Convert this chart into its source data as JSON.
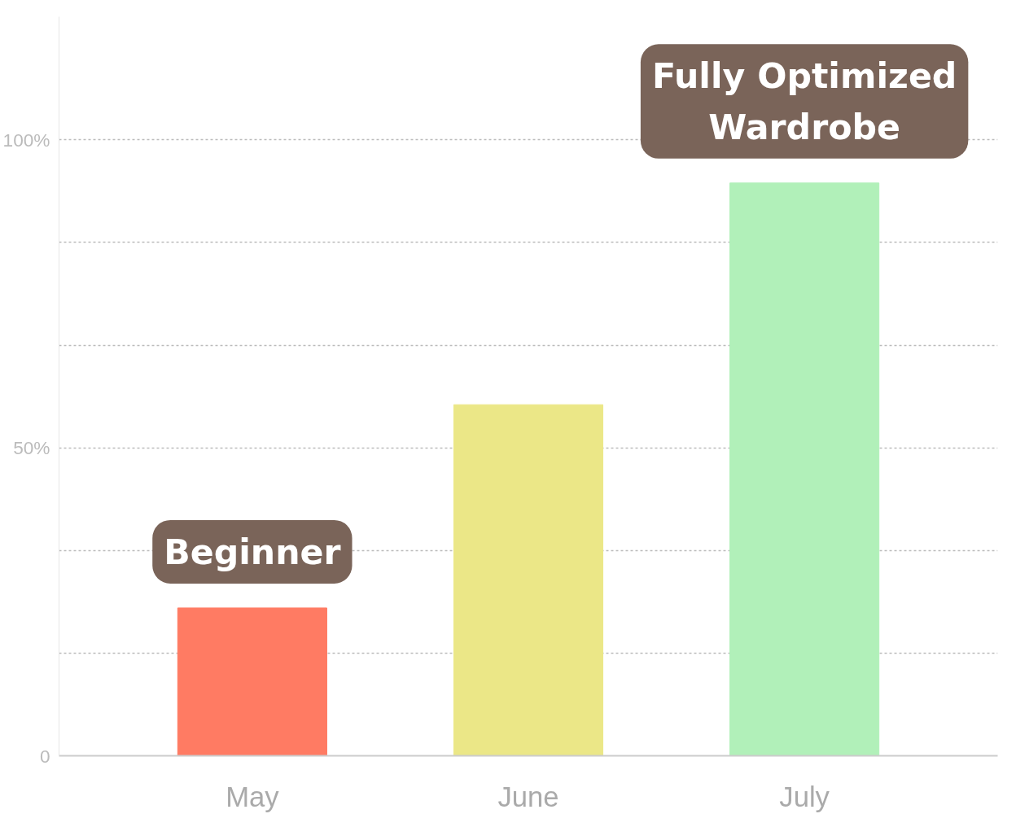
{
  "chart_data": {
    "type": "bar",
    "categories": [
      "May",
      "June",
      "July"
    ],
    "values": [
      24,
      57,
      93
    ],
    "colors": [
      "#ff7b63",
      "#ebe787",
      "#b1f0b9"
    ],
    "ylim": [
      0,
      120
    ],
    "yticks": [
      0,
      {
        "value": 16.67,
        "label": null
      },
      {
        "value": 33.33,
        "label": null
      },
      {
        "value": 50,
        "label": "50%"
      },
      {
        "value": 66.67,
        "label": null
      },
      {
        "value": 83.33,
        "label": null
      },
      {
        "value": 100,
        "label": "100%"
      }
    ],
    "grid": "y",
    "annotations": [
      {
        "text": "Beginner",
        "x": "May",
        "y": 24
      },
      {
        "text": "Fully Optimized\nWardrobe",
        "x": "July",
        "y": 93
      }
    ]
  }
}
